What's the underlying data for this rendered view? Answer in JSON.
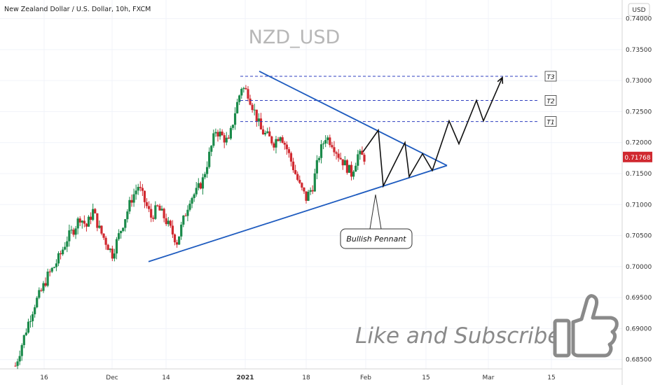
{
  "header": {
    "symbol_line": "New Zealand Dollar / U.S. Dollar, 10h, FXCM"
  },
  "watermark": {
    "title": "NZD_USD"
  },
  "currency_badge": "USD",
  "subscribe_text": "Like and Subscribe!",
  "pattern_label": "Bullish Pennant",
  "colors": {
    "up": "#1a8a4a",
    "down": "#d0282f",
    "trendline": "#1e5bbf",
    "target_line": "#2f3fbf",
    "projection": "#111111",
    "price_tag": "#d0282f"
  },
  "icons": [
    "thumbs-up-icon"
  ],
  "chart_data": {
    "type": "candlestick",
    "title": "NZD_USD",
    "x_tick_labels": [
      "16",
      "Dec",
      "14",
      "2021",
      "18",
      "Feb",
      "15",
      "Mar",
      "15"
    ],
    "y_tick_labels": [
      "0.74000",
      "0.73500",
      "0.73000",
      "0.72500",
      "0.72000",
      "0.71500",
      "0.71000",
      "0.70500",
      "0.70000",
      "0.69500",
      "0.69000",
      "0.68500"
    ],
    "ylim": [
      0.6835,
      0.743
    ],
    "last_price": "0.71768",
    "targets": [
      {
        "name": "T1",
        "value": 0.7234
      },
      {
        "name": "T2",
        "value": 0.7268
      },
      {
        "name": "T3",
        "value": 0.7307
      }
    ],
    "close_path": [
      0.684,
      0.6875,
      0.691,
      0.694,
      0.696,
      0.6985,
      0.7,
      0.702,
      0.7045,
      0.706,
      0.708,
      0.7065,
      0.709,
      0.706,
      0.704,
      0.702,
      0.705,
      0.708,
      0.711,
      0.713,
      0.7105,
      0.708,
      0.7095,
      0.708,
      0.706,
      0.704,
      0.7075,
      0.711,
      0.712,
      0.714,
      0.718,
      0.722,
      0.721,
      0.72,
      0.725,
      0.729,
      0.728,
      0.725,
      0.722,
      0.721,
      0.72,
      0.7215,
      0.719,
      0.716,
      0.713,
      0.711,
      0.713,
      0.718,
      0.721,
      0.72,
      0.718,
      0.7165,
      0.715,
      0.718,
      0.7176
    ],
    "trendlines": [
      {
        "name": "pennant-upper",
        "from": [
          "2021-01-01",
          0.7315
        ],
        "to": [
          "2021-02-17",
          0.7163
        ]
      },
      {
        "name": "pennant-lower",
        "from": [
          "2020-12-05",
          0.7008
        ],
        "to": [
          "2021-02-17",
          0.7163
        ]
      }
    ],
    "projection": [
      0.7185,
      0.722,
      0.713,
      0.72,
      0.7145,
      0.7182,
      0.7155,
      0.7235,
      0.7198,
      0.7268,
      0.7235,
      0.7305
    ],
    "grid": true,
    "legend": "none"
  }
}
